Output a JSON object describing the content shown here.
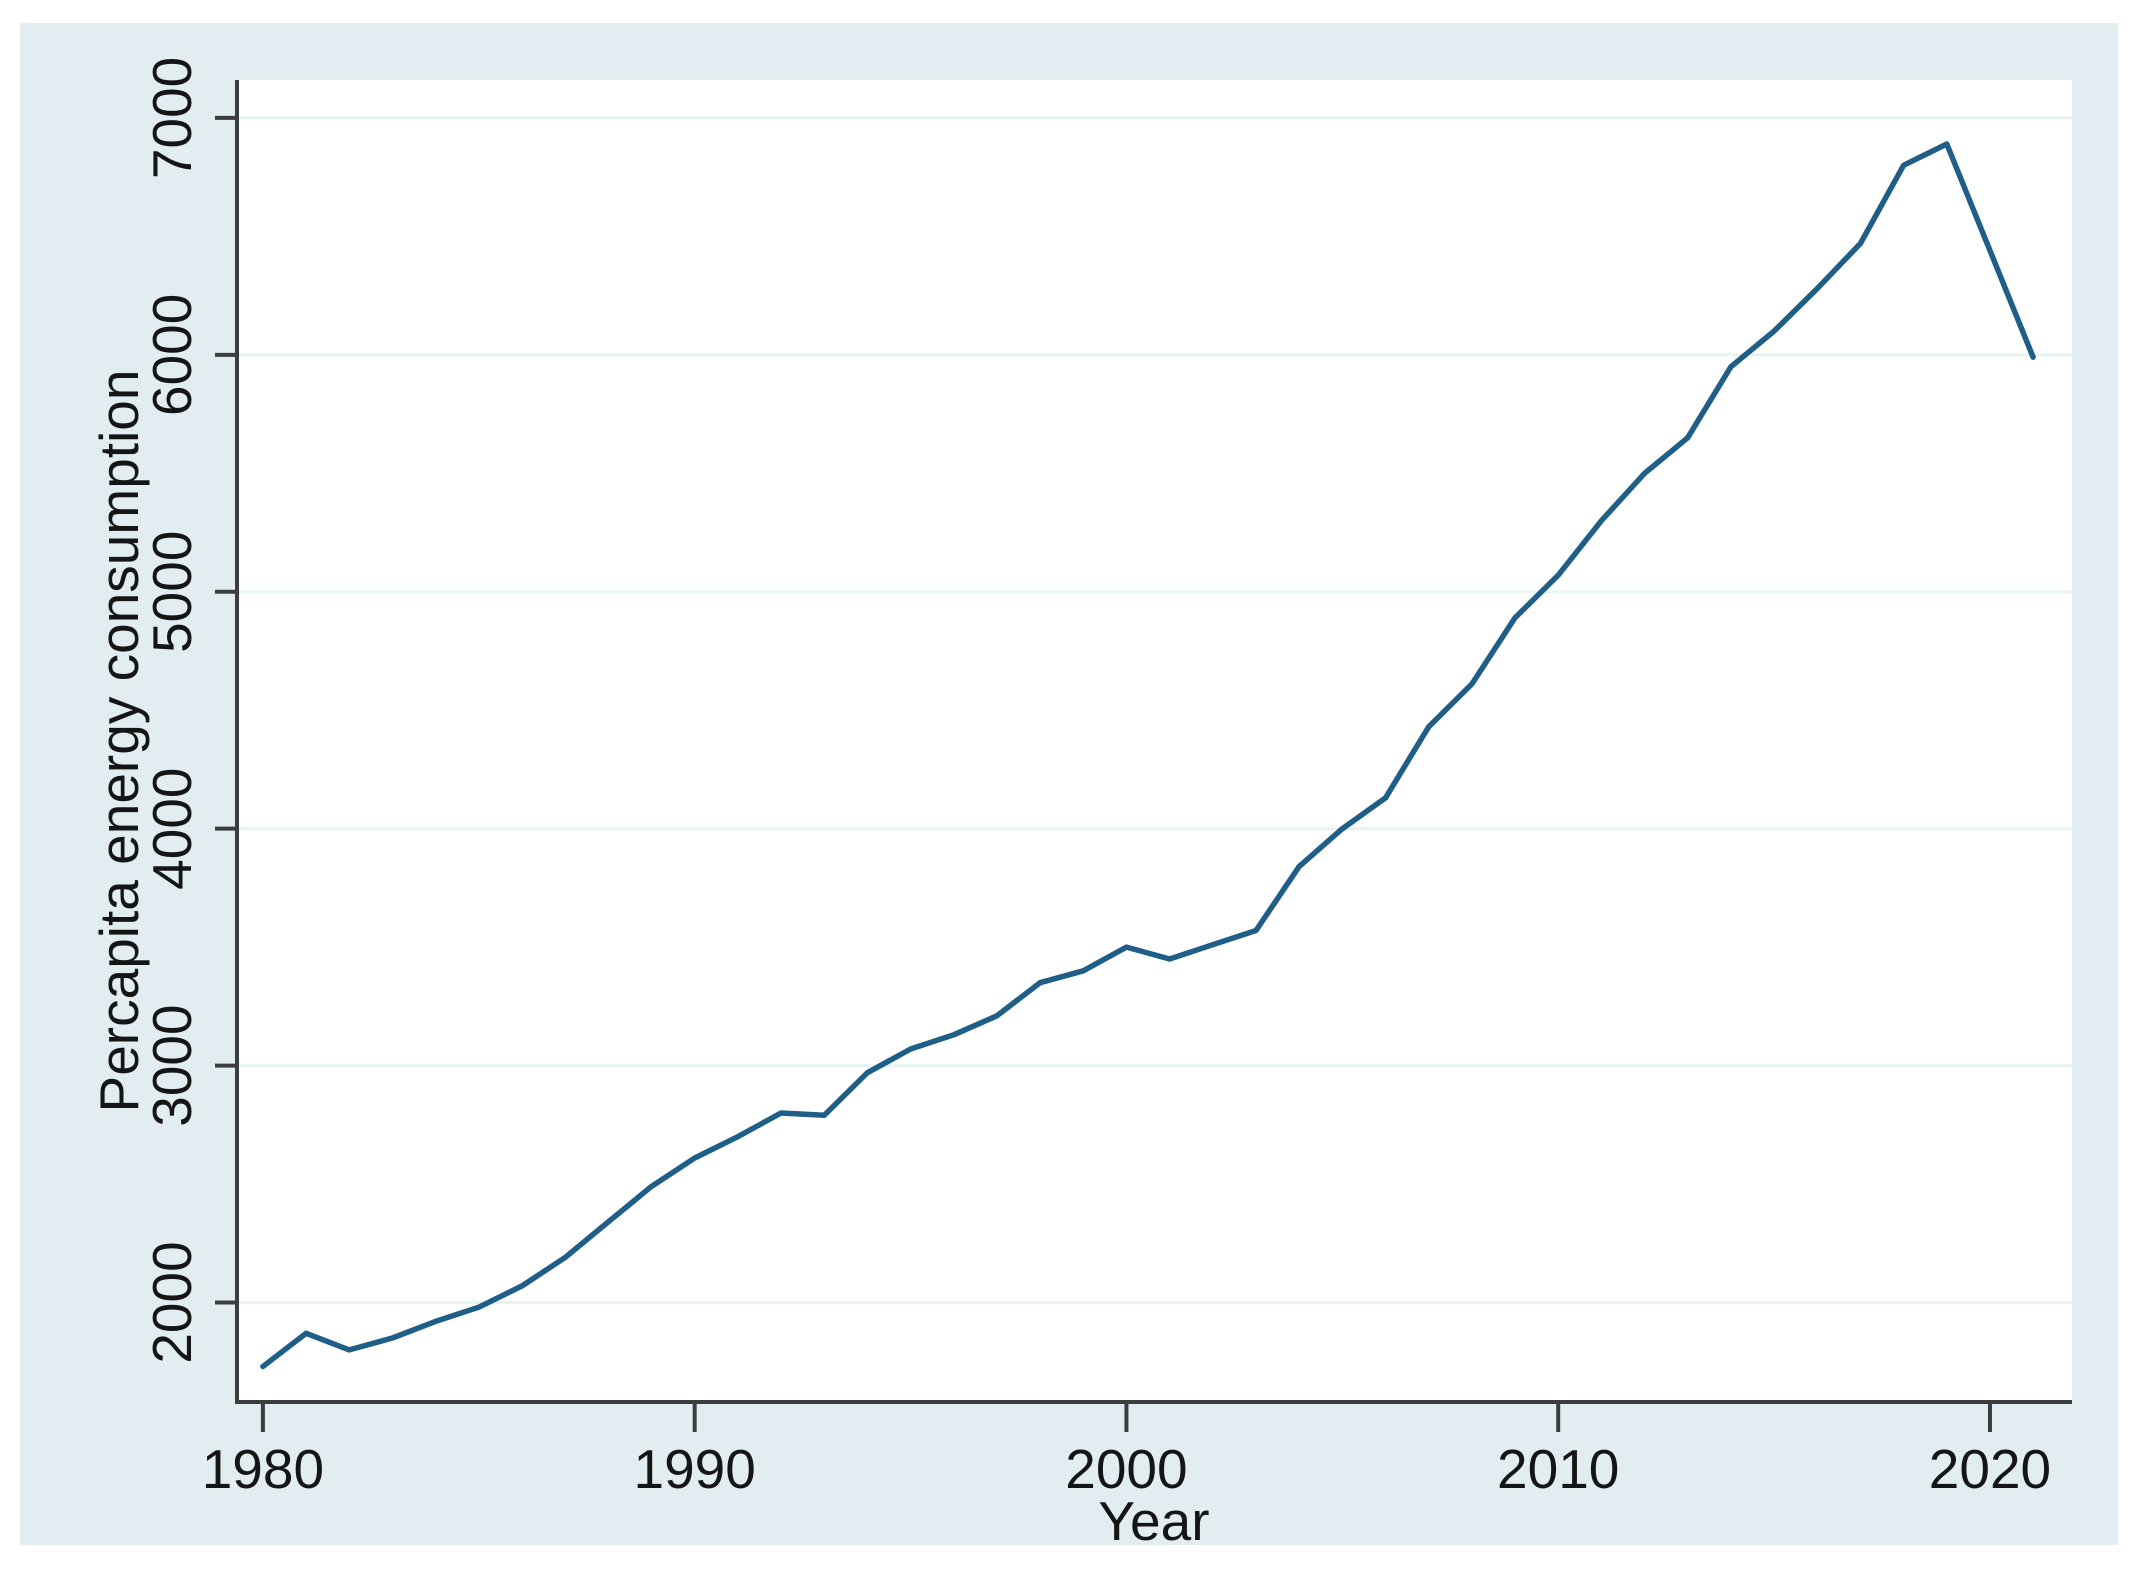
{
  "chart_data": {
    "type": "line",
    "title": "",
    "xlabel": "Year",
    "ylabel": "Percapita energy consumption",
    "x_ticks": [
      1980,
      1990,
      2000,
      2010,
      2020
    ],
    "y_ticks": [
      2000,
      3000,
      4000,
      5000,
      6000,
      7000
    ],
    "xlim": [
      1979.4,
      2021.9
    ],
    "ylim": [
      1580,
      7160
    ],
    "grid": "horizontal-only",
    "legend": "none",
    "colors": {
      "line": "#1f5e87",
      "outer_background": "#e1edf1",
      "plot_background": "#ffffff",
      "gridline": "#e8f4f4",
      "axis": "#3d3d3d",
      "text": "#151515"
    },
    "series": [
      {
        "name": "Percapita energy consumption",
        "x": [
          1980,
          1981,
          1982,
          1983,
          1984,
          1985,
          1986,
          1987,
          1988,
          1989,
          1990,
          1991,
          1992,
          1993,
          1994,
          1995,
          1996,
          1997,
          1998,
          1999,
          2000,
          2001,
          2002,
          2003,
          2004,
          2005,
          2006,
          2007,
          2008,
          2009,
          2010,
          2011,
          2012,
          2013,
          2014,
          2015,
          2016,
          2017,
          2018,
          2019,
          2020,
          2021
        ],
        "y": [
          1730,
          1870,
          1800,
          1850,
          1920,
          1980,
          2070,
          2190,
          2340,
          2490,
          2610,
          2700,
          2800,
          2790,
          2970,
          3070,
          3130,
          3210,
          3350,
          3400,
          3500,
          3450,
          3510,
          3570,
          3840,
          4000,
          4130,
          4430,
          4610,
          4890,
          5070,
          5300,
          5500,
          5650,
          5950,
          6100,
          6280,
          6470,
          6800,
          6890,
          6440,
          5990
        ]
      }
    ]
  }
}
